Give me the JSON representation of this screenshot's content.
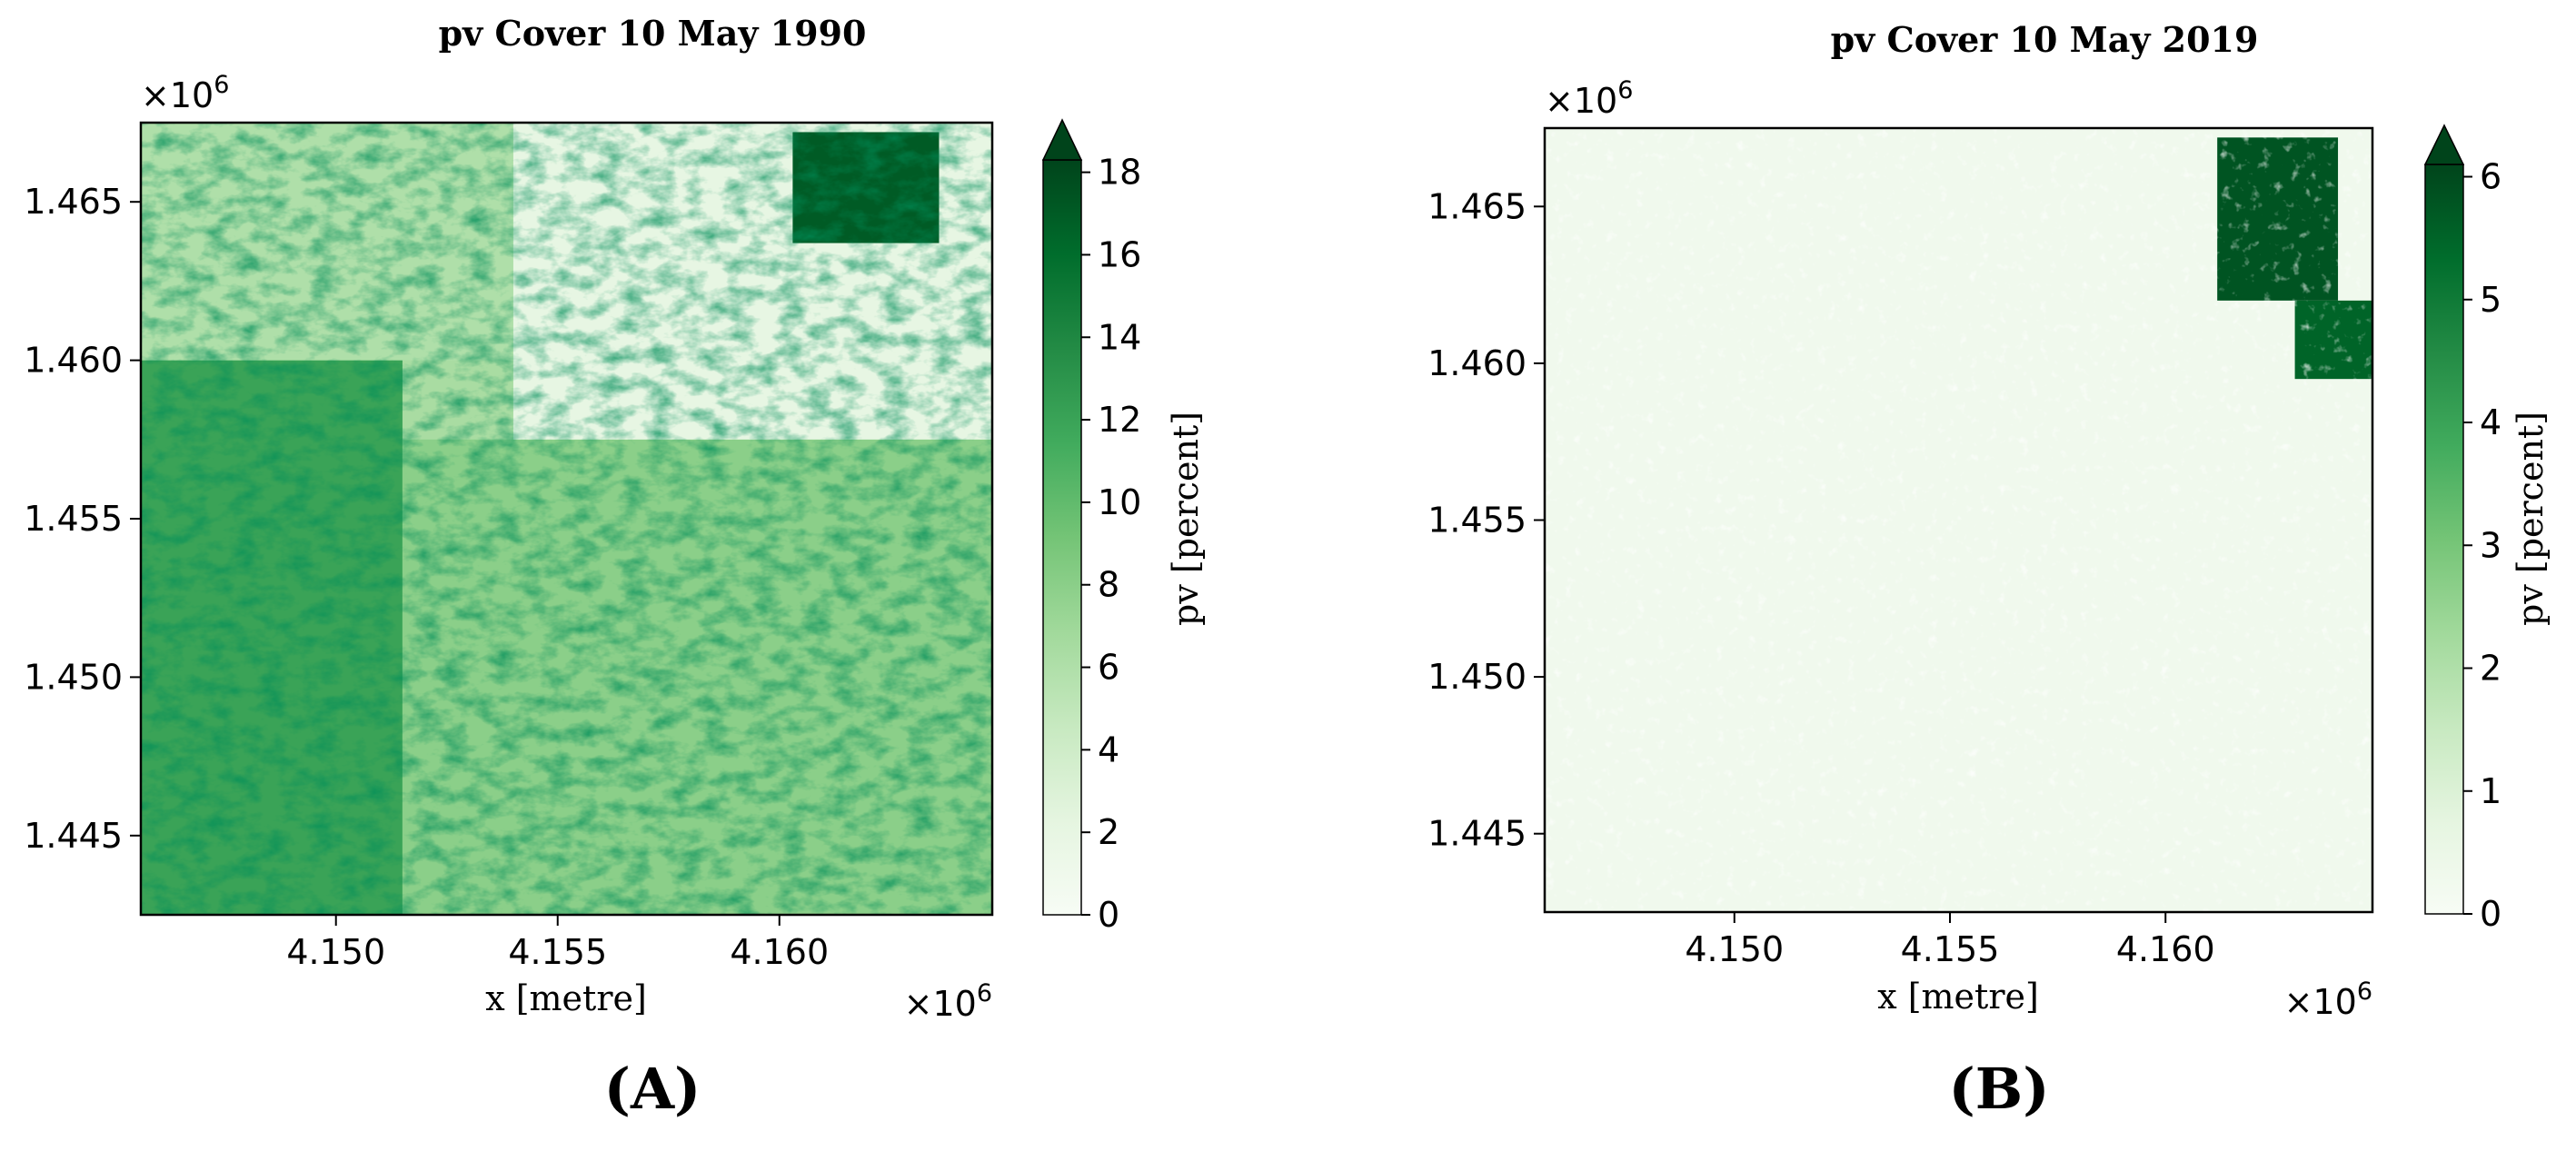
{
  "chart_data": [
    {
      "type": "heatmap",
      "panel_label": "(A)",
      "title": "pv Cover 10 May 1990",
      "xlabel": "x [metre]",
      "x_multiplier": "×10",
      "x_multiplier_exp": "6",
      "y_multiplier": "×10",
      "y_multiplier_exp": "6",
      "x_ticks": [
        4.15,
        4.155,
        4.16
      ],
      "x_tick_labels": [
        "4.150",
        "4.155",
        "4.160"
      ],
      "xlim": [
        4.1456,
        4.1648
      ],
      "y_ticks": [
        1.445,
        1.45,
        1.455,
        1.46,
        1.465
      ],
      "y_tick_labels": [
        "1.445",
        "1.450",
        "1.455",
        "1.460",
        "1.465"
      ],
      "ylim": [
        1.4425,
        1.4675
      ],
      "colorbar": {
        "label": "pv [percent]",
        "min": 0,
        "max": 18.3,
        "ticks": [
          0,
          2,
          4,
          6,
          8,
          10,
          12,
          14,
          16,
          18
        ],
        "tick_labels": [
          "0",
          "2",
          "4",
          "6",
          "8",
          "10",
          "12",
          "14",
          "16",
          "18"
        ],
        "extend": "max",
        "colormap": "Greens",
        "low_color": "#f7fcf5",
        "high_color": "#00441b"
      },
      "regions": [
        {
          "x": [
            4.1456,
            4.1515
          ],
          "y": [
            1.4425,
            1.46
          ],
          "level": 12
        },
        {
          "x": [
            4.1515,
            4.1648
          ],
          "y": [
            1.4425,
            1.4575
          ],
          "level": 8
        },
        {
          "x": [
            4.1456,
            4.154
          ],
          "y": [
            1.46,
            1.4675
          ],
          "level": 6
        },
        {
          "x": [
            4.154,
            4.1648
          ],
          "y": [
            1.4575,
            1.4675
          ],
          "level": 2
        },
        {
          "x": [
            4.1603,
            4.1636
          ],
          "y": [
            1.4637,
            1.4672
          ],
          "level": 17
        }
      ]
    },
    {
      "type": "heatmap",
      "panel_label": "(B)",
      "title": "pv Cover 10 May 2019",
      "xlabel": "x [metre]",
      "x_multiplier": "×10",
      "x_multiplier_exp": "6",
      "y_multiplier": "×10",
      "y_multiplier_exp": "6",
      "x_ticks": [
        4.15,
        4.155,
        4.16
      ],
      "x_tick_labels": [
        "4.150",
        "4.155",
        "4.160"
      ],
      "xlim": [
        4.1456,
        4.1648
      ],
      "y_ticks": [
        1.445,
        1.45,
        1.455,
        1.46,
        1.465
      ],
      "y_tick_labels": [
        "1.445",
        "1.450",
        "1.455",
        "1.460",
        "1.465"
      ],
      "ylim": [
        1.4425,
        1.4675
      ],
      "colorbar": {
        "label": "pv [percent]",
        "min": 0,
        "max": 6.1,
        "ticks": [
          0,
          1,
          2,
          3,
          4,
          5,
          6
        ],
        "tick_labels": [
          "0",
          "1",
          "2",
          "3",
          "4",
          "5",
          "6"
        ],
        "extend": "max",
        "colormap": "Greens",
        "low_color": "#f7fcf5",
        "high_color": "#00441b"
      },
      "regions": [
        {
          "x": [
            4.1456,
            4.1648
          ],
          "y": [
            1.4425,
            1.4675
          ],
          "level": 0.3
        },
        {
          "x": [
            4.1612,
            4.164
          ],
          "y": [
            1.462,
            1.4672
          ],
          "level": 5.8
        },
        {
          "x": [
            4.163,
            4.1648
          ],
          "y": [
            1.4595,
            1.462
          ],
          "level": 5.5
        }
      ]
    }
  ]
}
